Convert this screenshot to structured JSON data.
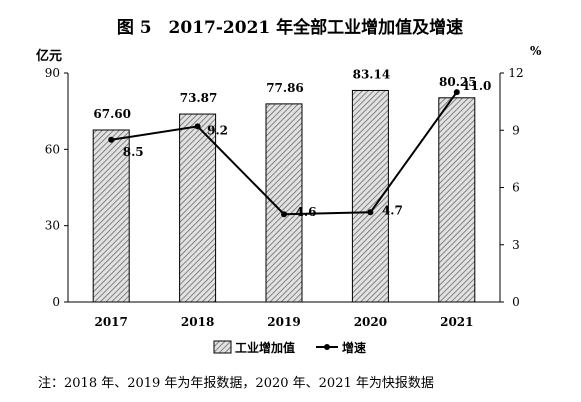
{
  "chart_data": {
    "type": "bar+line",
    "title": "图 5　2017-2021 年全部工业增加值及增速",
    "categories": [
      "2017",
      "2018",
      "2019",
      "2020",
      "2021"
    ],
    "series": [
      {
        "name": "工业增加值",
        "type": "bar",
        "axis": "left",
        "values": [
          67.6,
          73.87,
          77.86,
          83.14,
          80.25
        ],
        "labels": [
          "67.60",
          "73.87",
          "77.86",
          "83.14",
          "80.25"
        ]
      },
      {
        "name": "增速",
        "type": "line",
        "axis": "right",
        "values": [
          8.5,
          9.2,
          4.6,
          4.7,
          11.0
        ],
        "labels": [
          "8.5",
          "9.2",
          "4.6",
          "4.7",
          "11.0"
        ]
      }
    ],
    "y_left": {
      "unit": "亿元",
      "ticks": [
        "0",
        "30",
        "60",
        "90"
      ],
      "range": [
        0,
        90
      ]
    },
    "y_right": {
      "unit": "%",
      "ticks": [
        "0",
        "3",
        "6",
        "9",
        "12"
      ],
      "range": [
        0,
        12
      ]
    },
    "grid": false,
    "legend": "bottom",
    "colors": {
      "bar_fill": "#cfcfcf",
      "bar_stroke": "#000000",
      "line": "#000000"
    }
  },
  "note": "注：2018 年、2019 年为年报数据，2020 年、2021 年为快报数据"
}
